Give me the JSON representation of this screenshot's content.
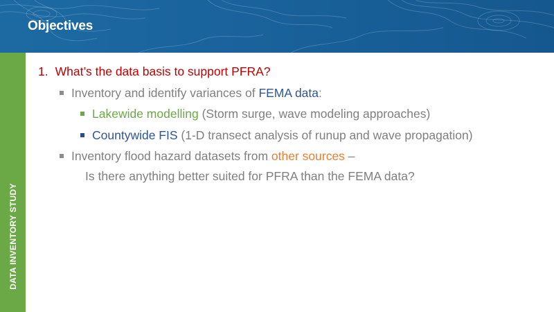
{
  "header": {
    "title": "Objectives"
  },
  "sidebar": {
    "label": "DATA INVENTORY STUDY"
  },
  "content": {
    "item1": {
      "number": "1.",
      "text": "What’s the data basis to support PFRA?"
    },
    "bullet_a": {
      "pre": "Inventory and identify variances of ",
      "highlight": "FEMA data",
      "post": ":"
    },
    "sub_1": {
      "highlight": "Lakewide modelling",
      "rest": " (Storm surge, wave modeling approaches)"
    },
    "sub_2": {
      "highlight": "Countywide FIS",
      "rest": " (1-D transect analysis of runup and wave propagation)"
    },
    "bullet_b": {
      "pre": "Inventory flood hazard datasets from ",
      "highlight": "other sources",
      "post": " –"
    },
    "bullet_b_line2": "Is there anything better suited for PFRA than the FEMA data?"
  },
  "colors": {
    "header_blue": "#1a639c",
    "sidebar_green": "#6ba946",
    "heading_red": "#c00000",
    "accent_blue": "#2e5598",
    "accent_orange": "#ed7d31",
    "body_gray": "#7f7f7f"
  }
}
